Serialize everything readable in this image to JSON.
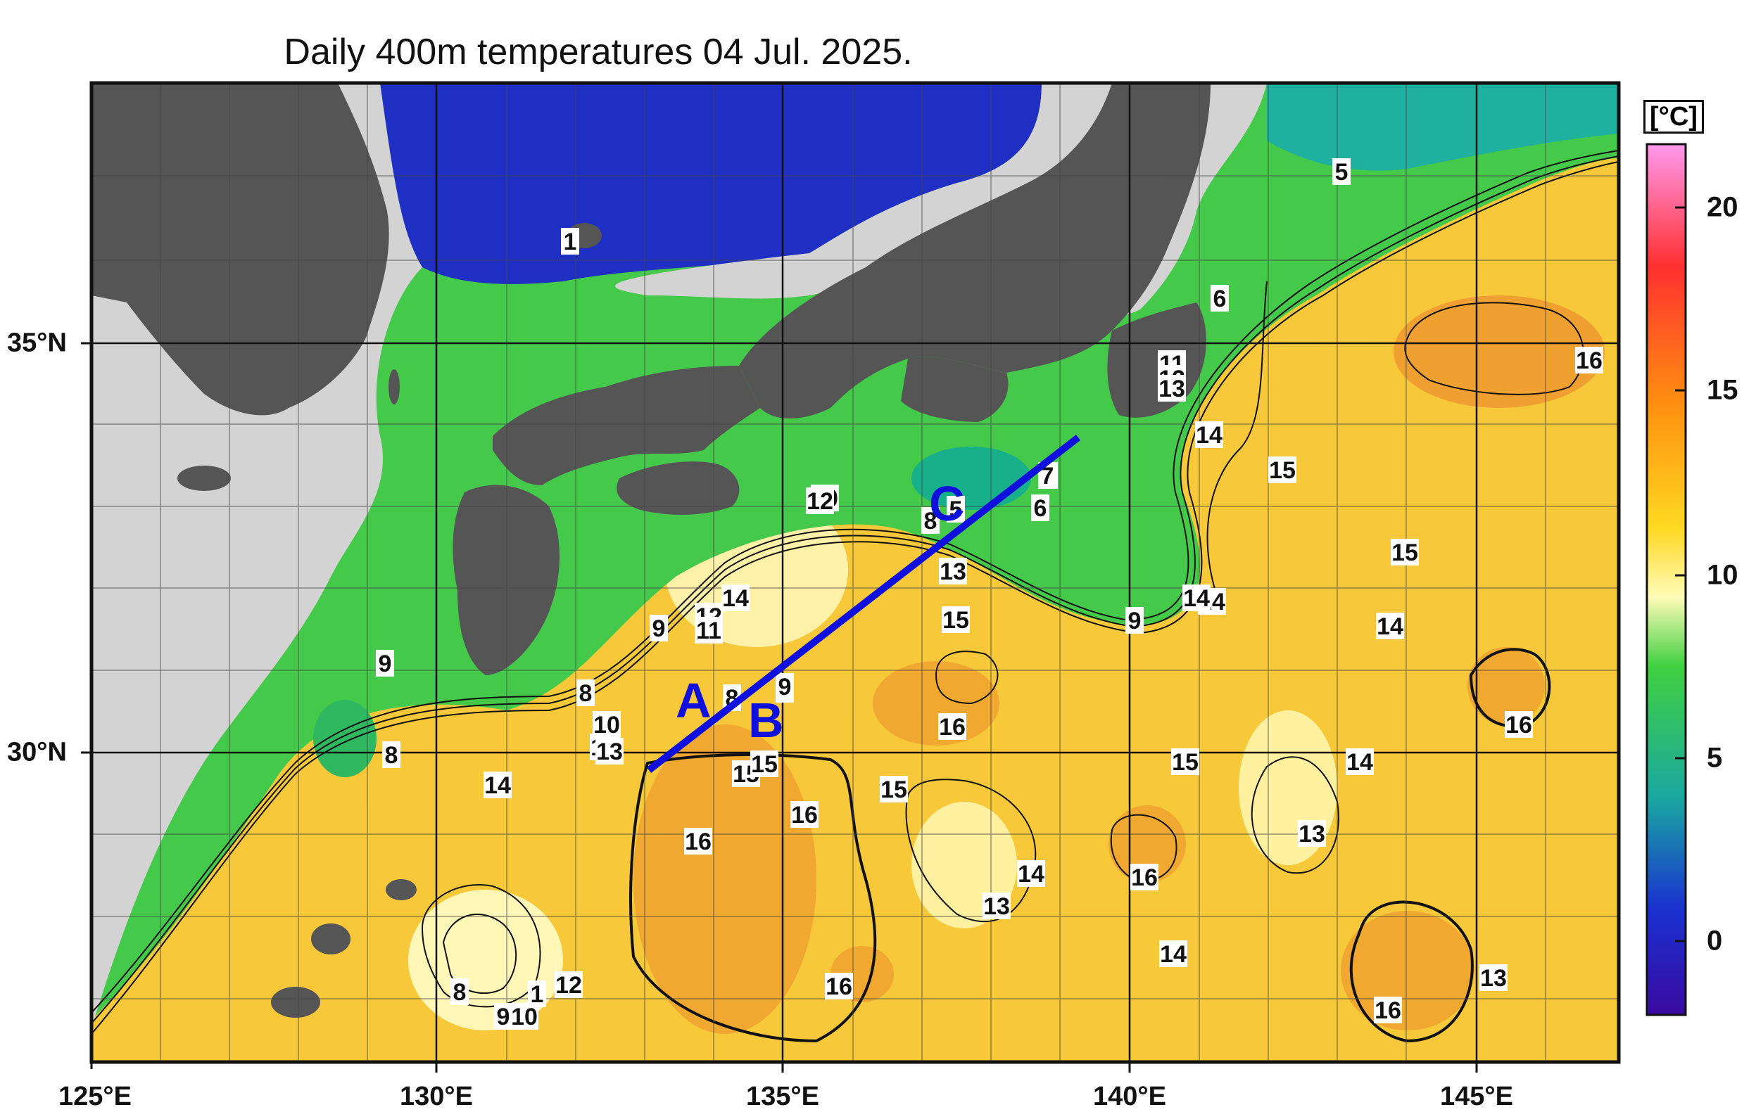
{
  "title": "Daily 400m temperatures 04 Jul. 2025.",
  "longitude_labels": [
    "125°E",
    "130°E",
    "135°E",
    "140°E",
    "145°E"
  ],
  "latitude_labels": [
    "35°N",
    "30°N"
  ],
  "colorbar": {
    "unit": "[°C]",
    "tick_labels": [
      "20",
      "15",
      "10",
      "5",
      "0"
    ],
    "colors": [
      "#ff88ee",
      "#ff2020",
      "#ff8c00",
      "#ffd21f",
      "#fffbb0",
      "#43d93a",
      "#1fa8a8",
      "#1a2bd0",
      "#3a0aa0"
    ]
  },
  "contour_labels": [
    "1",
    "5",
    "6",
    "16",
    "7",
    "11",
    "12",
    "13",
    "14",
    "15",
    "15",
    "14",
    "14",
    "10",
    "12",
    "7",
    "8",
    "5",
    "6",
    "13",
    "14",
    "9",
    "14",
    "12",
    "11",
    "9",
    "8",
    "10",
    "13",
    "8",
    "9",
    "15",
    "16",
    "9",
    "8",
    "9",
    "14",
    "15",
    "16",
    "15",
    "16",
    "15",
    "14",
    "16",
    "13",
    "14",
    "13",
    "16",
    "14",
    "16",
    "13",
    "8",
    "1",
    "12",
    "9",
    "10",
    "16",
    "15",
    "13"
  ],
  "section_line": {
    "labels": [
      "A",
      "B",
      "C"
    ],
    "color": "#1010dd"
  }
}
